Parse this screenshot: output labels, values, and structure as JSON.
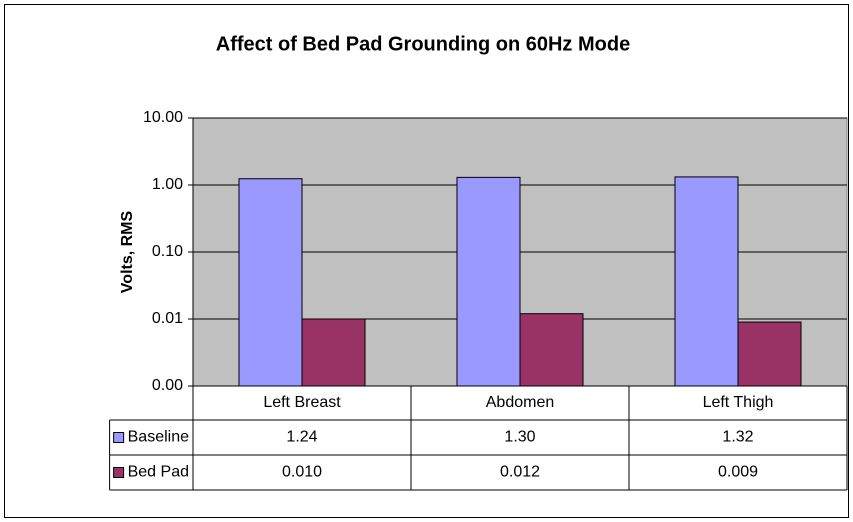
{
  "chart_data": {
    "type": "bar",
    "title": "Affect of Bed Pad Grounding on 60Hz Mode",
    "ylabel": "Volts, RMS",
    "categories": [
      "Left Breast",
      "Abdomen",
      "Left Thigh"
    ],
    "series": [
      {
        "name": "Baseline",
        "color": "#9999ff",
        "values": [
          1.24,
          1.3,
          1.32
        ],
        "value_labels": [
          "1.24",
          "1.30",
          "1.32"
        ]
      },
      {
        "name": "Bed Pad",
        "color": "#993366",
        "values": [
          0.01,
          0.012,
          0.009
        ],
        "value_labels": [
          "0.010",
          "0.012",
          "0.009"
        ]
      }
    ],
    "ylim": [
      0.001,
      10
    ],
    "log_scale": true,
    "grid": true,
    "yticks": [
      {
        "value": 0.001,
        "label": "0.00"
      },
      {
        "value": 0.01,
        "label": "0.01"
      },
      {
        "value": 0.1,
        "label": "0.10"
      },
      {
        "value": 1,
        "label": "1.00"
      },
      {
        "value": 10,
        "label": "10.00"
      }
    ],
    "plot_background": "#c0c0c0"
  }
}
